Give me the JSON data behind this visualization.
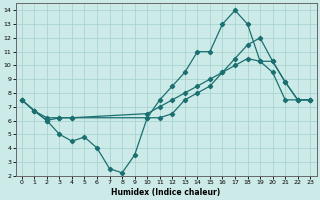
{
  "xlabel": "Humidex (Indice chaleur)",
  "xlim": [
    -0.5,
    23.5
  ],
  "ylim": [
    2,
    14.5
  ],
  "xticks": [
    0,
    1,
    2,
    3,
    4,
    5,
    6,
    7,
    8,
    9,
    10,
    11,
    12,
    13,
    14,
    15,
    16,
    17,
    18,
    19,
    20,
    21,
    22,
    23
  ],
  "yticks": [
    2,
    3,
    4,
    5,
    6,
    7,
    8,
    9,
    10,
    11,
    12,
    13,
    14
  ],
  "background_color": "#cceae8",
  "grid_color": "#aad4d1",
  "line_color": "#1a7070",
  "line1_x": [
    0,
    1,
    2,
    3,
    4,
    10,
    11,
    12,
    13,
    14,
    15,
    16,
    17,
    18,
    19,
    20,
    21,
    22,
    23
  ],
  "line1_y": [
    7.5,
    6.7,
    6.0,
    6.2,
    6.2,
    6.2,
    7.5,
    8.5,
    9.5,
    11.0,
    11.0,
    13.0,
    14.0,
    13.0,
    10.3,
    9.5,
    7.5,
    7.5,
    7.5
  ],
  "line2_x": [
    0,
    1,
    2,
    3,
    4,
    5,
    6,
    7,
    8,
    9,
    10,
    11,
    12,
    13,
    14,
    15,
    16,
    17,
    18,
    19,
    20,
    21,
    22,
    23
  ],
  "line2_y": [
    7.5,
    6.7,
    6.0,
    5.0,
    4.5,
    4.8,
    4.0,
    2.5,
    2.2,
    3.5,
    6.2,
    6.2,
    6.5,
    7.5,
    8.0,
    8.5,
    9.5,
    10.5,
    11.5,
    12.0,
    10.3,
    8.8,
    7.5,
    7.5
  ],
  "line3_x": [
    0,
    1,
    2,
    3,
    4,
    10,
    11,
    12,
    13,
    14,
    15,
    16,
    17,
    18,
    19,
    20,
    21,
    22,
    23
  ],
  "line3_y": [
    7.5,
    6.7,
    6.2,
    6.2,
    6.2,
    6.5,
    7.0,
    7.5,
    8.0,
    8.5,
    9.0,
    9.5,
    10.0,
    10.5,
    10.3,
    10.3,
    8.8,
    7.5,
    7.5
  ]
}
